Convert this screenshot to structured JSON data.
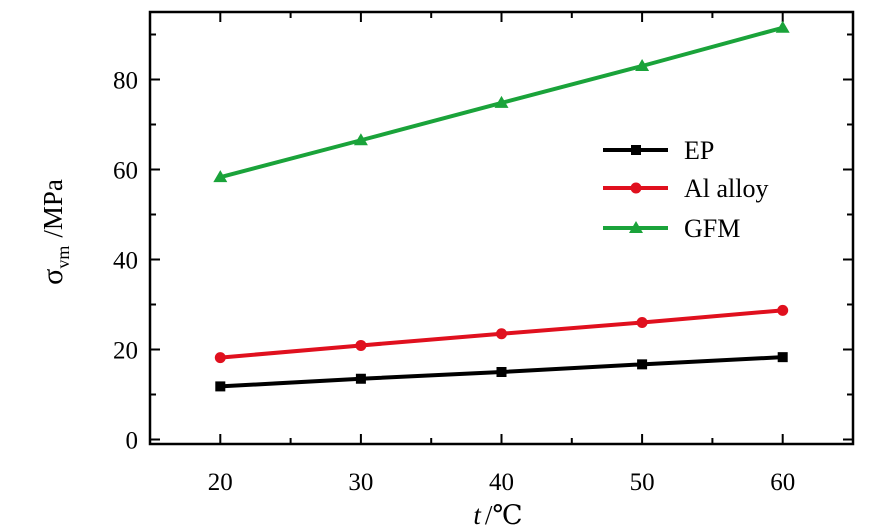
{
  "chart_data": {
    "type": "line",
    "x": [
      20,
      30,
      40,
      50,
      60
    ],
    "xlim": [
      15,
      65
    ],
    "ylim": [
      -1,
      95
    ],
    "xticks": [
      "20",
      "30",
      "40",
      "50",
      "60"
    ],
    "yticks": [
      "0",
      "20",
      "40",
      "60",
      "80"
    ],
    "xlabel": {
      "var": "t",
      "unit": "/℃"
    },
    "ylabel": {
      "sym": "σ",
      "sub": "vm",
      "unit": "/MPa"
    },
    "legend_position": "right",
    "grid": false,
    "series": [
      {
        "name": "EP",
        "marker": "square",
        "color": "#000000",
        "values": [
          11.8,
          13.5,
          15.0,
          16.7,
          18.3
        ]
      },
      {
        "name": "Al alloy",
        "marker": "circle",
        "color": "#e0101e",
        "values": [
          18.2,
          20.9,
          23.5,
          26.0,
          28.7
        ]
      },
      {
        "name": "GFM",
        "marker": "triangle",
        "color": "#1aa33a",
        "values": [
          58.3,
          66.5,
          74.8,
          83.0,
          91.5
        ]
      }
    ]
  }
}
